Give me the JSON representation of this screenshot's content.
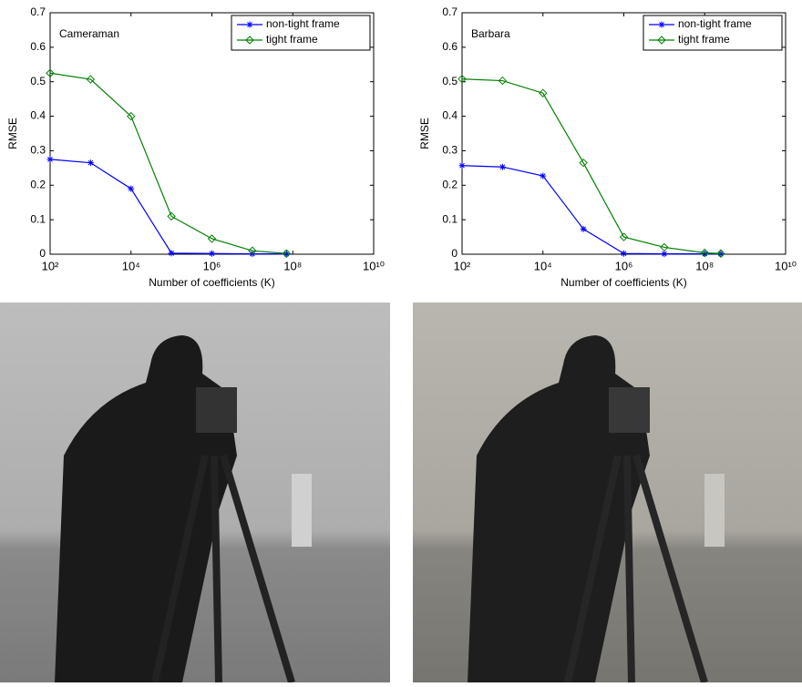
{
  "chart_data": [
    {
      "type": "line",
      "annotation": "Cameraman",
      "ylabel": "RMSE",
      "xlabel": "Number of coefficients (K)",
      "xscale": "log",
      "xlim": [
        100,
        10000000000
      ],
      "ylim": [
        0,
        0.7
      ],
      "xticks": [
        {
          "value": 100,
          "label": "10²"
        },
        {
          "value": 10000,
          "label": "10⁴"
        },
        {
          "value": 1000000,
          "label": "10⁶"
        },
        {
          "value": 100000000,
          "label": "10⁸"
        },
        {
          "value": 10000000000,
          "label": "10¹⁰"
        }
      ],
      "yticks": [
        0,
        0.1,
        0.2,
        0.3,
        0.4,
        0.5,
        0.6,
        0.7
      ],
      "legend": "upper right",
      "x": [
        100,
        1000,
        10000,
        100000,
        1000000,
        10000000,
        70000000
      ],
      "series": [
        {
          "name": "non-tight frame",
          "color": "#0000ff",
          "marker": "star",
          "values": [
            0.275,
            0.265,
            0.19,
            0.003,
            0.002,
            0.001,
            0.001
          ]
        },
        {
          "name": "tight frame",
          "color": "#008000",
          "marker": "diamond",
          "values": [
            0.525,
            0.507,
            0.4,
            0.11,
            0.045,
            0.01,
            0.002
          ]
        }
      ]
    },
    {
      "type": "line",
      "annotation": "Barbara",
      "ylabel": "RMSE",
      "xlabel": "Number of coefficients (K)",
      "xscale": "log",
      "xlim": [
        100,
        10000000000
      ],
      "ylim": [
        0,
        0.7
      ],
      "xticks": [
        {
          "value": 100,
          "label": "10²"
        },
        {
          "value": 10000,
          "label": "10⁴"
        },
        {
          "value": 1000000,
          "label": "10⁶"
        },
        {
          "value": 100000000,
          "label": "10⁸"
        },
        {
          "value": 10000000000,
          "label": "10¹⁰"
        }
      ],
      "yticks": [
        0,
        0.1,
        0.2,
        0.3,
        0.4,
        0.5,
        0.6,
        0.7
      ],
      "legend": "upper right",
      "x": [
        100,
        1000,
        10000,
        100000,
        1000000,
        10000000,
        100000000,
        250000000
      ],
      "series": [
        {
          "name": "non-tight frame",
          "color": "#0000ff",
          "marker": "star",
          "values": [
            0.257,
            0.253,
            0.227,
            0.073,
            0.002,
            0.001,
            0.001,
            0.001
          ]
        },
        {
          "name": "tight frame",
          "color": "#008000",
          "marker": "diamond",
          "values": [
            0.508,
            0.503,
            0.467,
            0.265,
            0.05,
            0.02,
            0.004,
            0.002
          ]
        }
      ]
    }
  ]
}
